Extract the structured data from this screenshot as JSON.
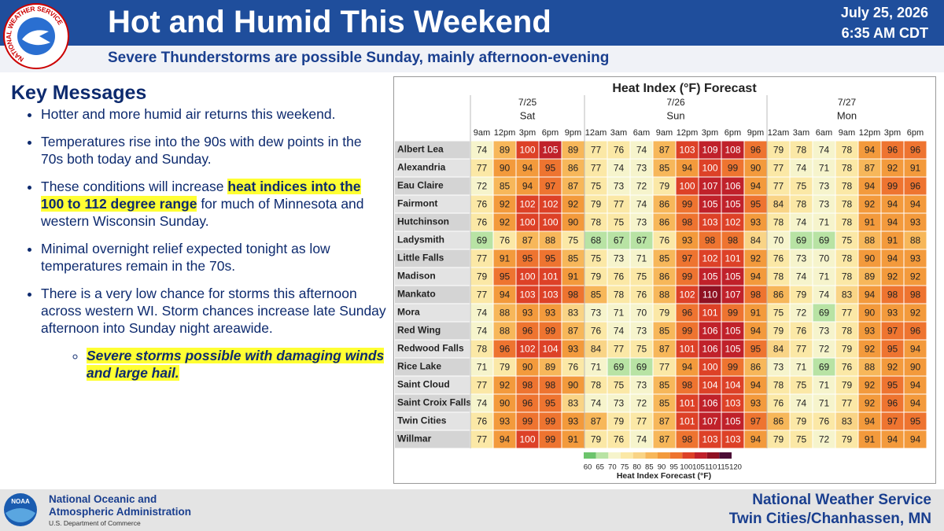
{
  "header": {
    "title": "Hot and Humid This Weekend",
    "subtitle": "Severe Thunderstorms are possible Sunday, mainly afternoon-evening",
    "date": "July 25, 2026",
    "time": "6:35 AM CDT",
    "logo_text": "NATIONAL WEATHER SERVICE"
  },
  "key_messages": {
    "title": "Key Messages",
    "items": [
      {
        "text": "Hotter and more humid air returns this weekend."
      },
      {
        "text": "Temperatures rise into the 90s with dew points in the 70s both today and Sunday."
      },
      {
        "before": "These conditions will increase ",
        "highlight": "heat indices into the 100 to 112 degree range",
        "after": " for much of Minnesota and western Wisconsin Sunday."
      },
      {
        "text": "Minimal overnight relief expected tonight as low temperatures remain in the 70s."
      },
      {
        "text": "There is a very low chance for storms this afternoon across western WI. Storm chances increase late Sunday afternoon into Sunday night areawide."
      }
    ],
    "sub_item": "Severe storms possible with damaging winds and large hail."
  },
  "table": {
    "title": "Heat Index (°F) Forecast",
    "days": [
      {
        "date": "7/25",
        "day": "Sat",
        "times": [
          "9am",
          "12pm",
          "3pm",
          "6pm",
          "9pm"
        ]
      },
      {
        "date": "7/26",
        "day": "Sun",
        "times": [
          "12am",
          "3am",
          "6am",
          "9am",
          "12pm",
          "3pm",
          "6pm",
          "9pm"
        ]
      },
      {
        "date": "7/27",
        "day": "Mon",
        "times": [
          "12am",
          "3am",
          "6am",
          "9am",
          "12pm",
          "3pm",
          "6pm"
        ]
      }
    ],
    "rows": [
      {
        "location": "Albert Lea",
        "values": [
          74,
          89,
          100,
          105,
          89,
          77,
          76,
          74,
          87,
          103,
          109,
          108,
          96,
          79,
          78,
          74,
          78,
          94,
          96,
          96
        ]
      },
      {
        "location": "Alexandria",
        "values": [
          77,
          90,
          94,
          95,
          86,
          77,
          74,
          73,
          85,
          94,
          100,
          99,
          90,
          77,
          74,
          71,
          78,
          87,
          92,
          91
        ]
      },
      {
        "location": "Eau Claire",
        "values": [
          72,
          85,
          94,
          97,
          87,
          75,
          73,
          72,
          79,
          100,
          107,
          106,
          94,
          77,
          75,
          73,
          78,
          94,
          99,
          96
        ]
      },
      {
        "location": "Fairmont",
        "values": [
          76,
          92,
          102,
          102,
          92,
          79,
          77,
          74,
          86,
          99,
          105,
          105,
          95,
          84,
          78,
          73,
          78,
          92,
          94,
          94
        ]
      },
      {
        "location": "Hutchinson",
        "values": [
          76,
          92,
          100,
          100,
          90,
          78,
          75,
          73,
          86,
          98,
          103,
          102,
          93,
          78,
          74,
          71,
          78,
          91,
          94,
          93
        ]
      },
      {
        "location": "Ladysmith",
        "values": [
          69,
          76,
          87,
          88,
          75,
          68,
          67,
          67,
          76,
          93,
          98,
          98,
          84,
          70,
          69,
          69,
          75,
          88,
          91,
          88
        ]
      },
      {
        "location": "Little Falls",
        "values": [
          77,
          91,
          95,
          95,
          85,
          75,
          73,
          71,
          85,
          97,
          102,
          101,
          92,
          76,
          73,
          70,
          78,
          90,
          94,
          93
        ]
      },
      {
        "location": "Madison",
        "values": [
          79,
          95,
          100,
          101,
          91,
          79,
          76,
          75,
          86,
          99,
          105,
          105,
          94,
          78,
          74,
          71,
          78,
          89,
          92,
          92
        ]
      },
      {
        "location": "Mankato",
        "values": [
          77,
          94,
          103,
          103,
          98,
          85,
          78,
          76,
          88,
          102,
          110,
          107,
          98,
          86,
          79,
          74,
          83,
          94,
          98,
          98
        ]
      },
      {
        "location": "Mora",
        "values": [
          74,
          88,
          93,
          93,
          83,
          73,
          71,
          70,
          79,
          96,
          101,
          99,
          91,
          75,
          72,
          69,
          77,
          90,
          93,
          92
        ]
      },
      {
        "location": "Red Wing",
        "values": [
          74,
          88,
          96,
          99,
          87,
          76,
          74,
          73,
          85,
          99,
          106,
          105,
          94,
          79,
          76,
          73,
          78,
          93,
          97,
          96
        ]
      },
      {
        "location": "Redwood Falls",
        "values": [
          78,
          96,
          102,
          104,
          93,
          84,
          77,
          75,
          87,
          101,
          106,
          105,
          95,
          84,
          77,
          72,
          79,
          92,
          95,
          94
        ]
      },
      {
        "location": "Rice Lake",
        "values": [
          71,
          79,
          90,
          89,
          76,
          71,
          69,
          69,
          77,
          94,
          100,
          99,
          86,
          73,
          71,
          69,
          76,
          88,
          92,
          90
        ]
      },
      {
        "location": "Saint Cloud",
        "values": [
          77,
          92,
          98,
          98,
          90,
          78,
          75,
          73,
          85,
          98,
          104,
          104,
          94,
          78,
          75,
          71,
          79,
          92,
          95,
          94
        ]
      },
      {
        "location": "Saint Croix Falls",
        "values": [
          74,
          90,
          96,
          95,
          83,
          74,
          73,
          72,
          85,
          101,
          106,
          103,
          93,
          76,
          74,
          71,
          77,
          92,
          96,
          94
        ]
      },
      {
        "location": "Twin Cities",
        "values": [
          76,
          93,
          99,
          99,
          93,
          87,
          79,
          77,
          87,
          101,
          107,
          105,
          97,
          86,
          79,
          76,
          83,
          94,
          97,
          95
        ]
      },
      {
        "location": "Willmar",
        "values": [
          77,
          94,
          100,
          99,
          91,
          79,
          76,
          74,
          87,
          98,
          103,
          103,
          94,
          79,
          75,
          72,
          79,
          91,
          94,
          94
        ]
      }
    ],
    "legend": {
      "title": "Heat Index Forecast (°F)",
      "ticks": [
        60,
        65,
        70,
        75,
        80,
        85,
        90,
        95,
        100,
        105,
        110,
        115,
        120
      ],
      "colors": [
        "#6cc46c",
        "#b8e3a4",
        "#f6f4cc",
        "#fbe8a6",
        "#f9d486",
        "#f7b75a",
        "#f39a3c",
        "#ee7430",
        "#dd4127",
        "#c0212a",
        "#8f1122",
        "#4b0d36"
      ]
    }
  },
  "footer": {
    "noaa_logo": "NOAA",
    "agency": [
      "National Oceanic and",
      "Atmospheric Administration"
    ],
    "department": "U.S. Department of Commerce",
    "office": "National Weather Service",
    "location": "Twin Cities/Chanhassen, MN"
  }
}
